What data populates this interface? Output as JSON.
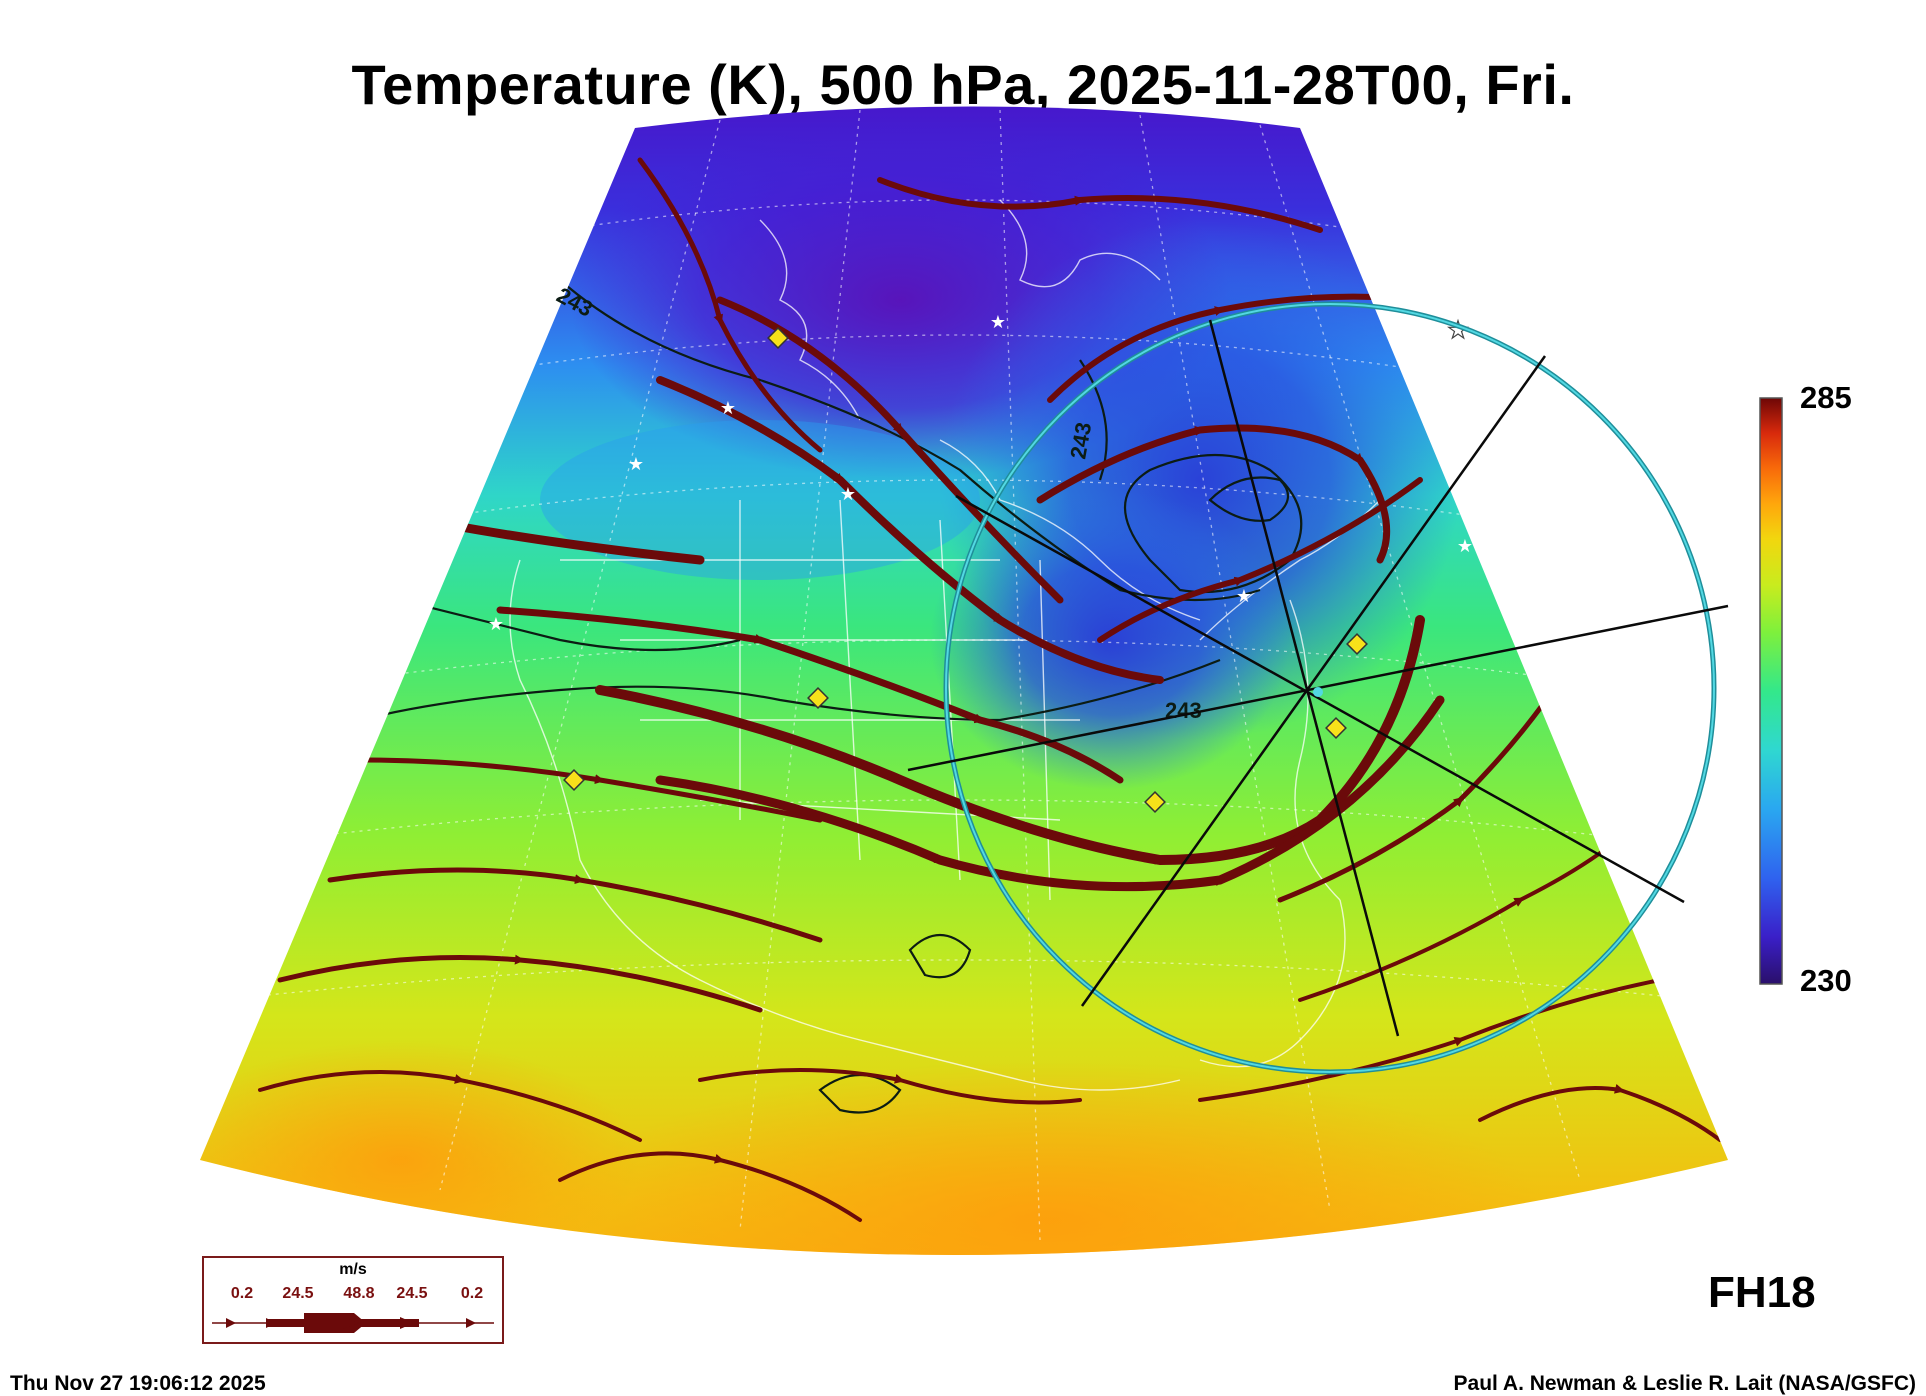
{
  "title": "Temperature (K), 500 hPa, 2025-11-28T00, Fri.",
  "colorbar": {
    "max_label": "285",
    "min_label": "230",
    "colors": [
      "#2a0f6a",
      "#3a1fc8",
      "#2f62ef",
      "#2aa8f0",
      "#2fd8d0",
      "#33e88a",
      "#7ef03c",
      "#c8ec1e",
      "#f2d60e",
      "#ffa60c",
      "#f86a0a",
      "#d82a0c",
      "#b00a0a",
      "#6e0606"
    ]
  },
  "contour_labels": [
    "243",
    "243",
    "243"
  ],
  "forecast_hour": "FH18",
  "timestamp": "Thu Nov 27 19:06:12 2025",
  "credit": "Paul A. Newman & Leslie R. Lait (NASA/GSFC)",
  "wind_legend": {
    "unit": "m/s",
    "values": [
      "0.2",
      "24.5",
      "48.8",
      "24.5",
      "0.2"
    ]
  },
  "colors": {
    "streamline": "#6b0a0a",
    "circle": "#35c5d2",
    "marker_fill": "#f7e11a",
    "contour": "#0c1c14"
  }
}
